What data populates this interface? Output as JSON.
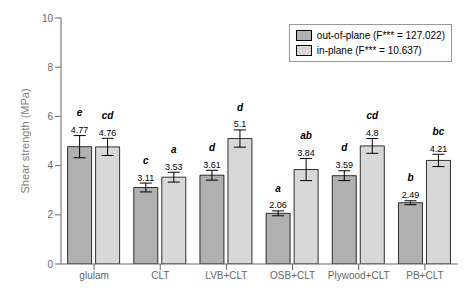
{
  "chart_data": {
    "type": "bar",
    "categories": [
      "glulam",
      "CLT",
      "LVB+CLT",
      "OSB+CLT",
      "Plywood+CLT",
      "PB+CLT"
    ],
    "series": [
      {
        "name": "out-of-plane (F*** = 127.022)",
        "color": "#b0b0b0",
        "values": [
          4.77,
          3.11,
          3.61,
          2.06,
          3.59,
          2.49
        ],
        "errors": [
          0.45,
          0.18,
          0.2,
          0.1,
          0.2,
          0.08
        ],
        "annotations": [
          "e",
          "c",
          "d",
          "a",
          "d",
          "b"
        ]
      },
      {
        "name": "in-plane (F*** = 10.637)",
        "color": "#d8d8d8",
        "values": [
          4.76,
          3.53,
          5.1,
          3.84,
          4.8,
          4.21
        ],
        "errors": [
          0.35,
          0.2,
          0.35,
          0.45,
          0.3,
          0.25
        ],
        "annotations": [
          "cd",
          "a",
          "d",
          "ab",
          "cd",
          "bc"
        ]
      }
    ],
    "y_label": "Shear strength (MPa)",
    "ylim": [
      0,
      10
    ],
    "yticks": [
      0,
      2,
      4,
      6,
      8,
      10
    ],
    "data_labels": true,
    "legend": "upper right",
    "grid": false
  }
}
